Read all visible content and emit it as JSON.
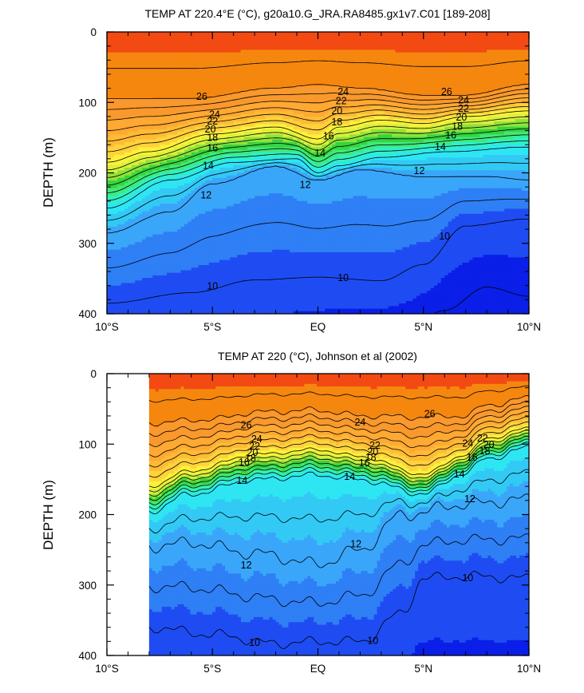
{
  "chart_data": [
    {
      "type": "contour",
      "title": "TEMP AT 220.4°E (°C), g20a10.G_JRA.RA8485.gx1v7.C01 [189-208]",
      "ylabel": "DEPTH (m)",
      "xlabel": "",
      "x_ticks": [
        "10°S",
        "5°S",
        "EQ",
        "5°N",
        "10°N"
      ],
      "y_ticks": [
        "0",
        "100",
        "200",
        "300",
        "400"
      ],
      "xlim": [
        -10,
        10
      ],
      "ylim": [
        400,
        0
      ],
      "data_x_range": [
        -10,
        10
      ],
      "contour_interval": 1,
      "contour_labels": [
        {
          "text": "26",
          "x": -5.5,
          "y": 92
        },
        {
          "text": "24",
          "x": -4.9,
          "y": 117
        },
        {
          "text": "22",
          "x": -5.0,
          "y": 127
        },
        {
          "text": "20",
          "x": -5.1,
          "y": 138
        },
        {
          "text": "18",
          "x": -5.0,
          "y": 150
        },
        {
          "text": "16",
          "x": -5.0,
          "y": 165
        },
        {
          "text": "14",
          "x": -5.2,
          "y": 190
        },
        {
          "text": "12",
          "x": -5.3,
          "y": 232
        },
        {
          "text": "24",
          "x": 1.2,
          "y": 85
        },
        {
          "text": "22",
          "x": 1.1,
          "y": 98
        },
        {
          "text": "20",
          "x": 0.9,
          "y": 112
        },
        {
          "text": "18",
          "x": 0.9,
          "y": 128
        },
        {
          "text": "16",
          "x": 0.5,
          "y": 148
        },
        {
          "text": "14",
          "x": 0.1,
          "y": 172
        },
        {
          "text": "12",
          "x": -0.6,
          "y": 217
        },
        {
          "text": "26",
          "x": 6.1,
          "y": 85
        },
        {
          "text": "24",
          "x": 6.9,
          "y": 97
        },
        {
          "text": "22",
          "x": 6.9,
          "y": 109
        },
        {
          "text": "20",
          "x": 6.8,
          "y": 121
        },
        {
          "text": "18",
          "x": 6.6,
          "y": 134
        },
        {
          "text": "16",
          "x": 6.3,
          "y": 147
        },
        {
          "text": "14",
          "x": 5.8,
          "y": 163
        },
        {
          "text": "12",
          "x": 4.8,
          "y": 197
        },
        {
          "text": "10",
          "x": 6.0,
          "y": 290
        },
        {
          "text": "10",
          "x": -5.0,
          "y": 361
        },
        {
          "text": "10",
          "x": 1.2,
          "y": 349
        }
      ]
    },
    {
      "type": "contour",
      "title": "TEMP AT 220 (°C), Johnson et al (2002)",
      "ylabel": "DEPTH (m)",
      "xlabel": "",
      "x_ticks": [
        "10°S",
        "5°S",
        "EQ",
        "5°N",
        "10°N"
      ],
      "y_ticks": [
        "0",
        "100",
        "200",
        "300",
        "400"
      ],
      "xlim": [
        -10,
        10
      ],
      "ylim": [
        400,
        0
      ],
      "data_x_range": [
        -8,
        10
      ],
      "contour_interval": 1,
      "contour_labels": [
        {
          "text": "26",
          "x": -3.4,
          "y": 73
        },
        {
          "text": "24",
          "x": -2.9,
          "y": 93
        },
        {
          "text": "22",
          "x": -3.0,
          "y": 103
        },
        {
          "text": "20",
          "x": -3.1,
          "y": 112
        },
        {
          "text": "18",
          "x": -3.2,
          "y": 120
        },
        {
          "text": "16",
          "x": -3.5,
          "y": 126
        },
        {
          "text": "14",
          "x": -3.6,
          "y": 152
        },
        {
          "text": "24",
          "x": 2.0,
          "y": 69
        },
        {
          "text": "26",
          "x": 5.3,
          "y": 57
        },
        {
          "text": "22",
          "x": 2.7,
          "y": 102
        },
        {
          "text": "20",
          "x": 2.6,
          "y": 111
        },
        {
          "text": "18",
          "x": 2.5,
          "y": 119
        },
        {
          "text": "16",
          "x": 2.2,
          "y": 127
        },
        {
          "text": "14",
          "x": 1.5,
          "y": 146
        },
        {
          "text": "12",
          "x": 7.2,
          "y": 178
        },
        {
          "text": "12",
          "x": 1.8,
          "y": 242
        },
        {
          "text": "12",
          "x": -3.4,
          "y": 272
        },
        {
          "text": "24",
          "x": 7.1,
          "y": 99
        },
        {
          "text": "22",
          "x": 7.8,
          "y": 92
        },
        {
          "text": "20",
          "x": 8.1,
          "y": 101
        },
        {
          "text": "18",
          "x": 7.9,
          "y": 110
        },
        {
          "text": "16",
          "x": 7.3,
          "y": 119
        },
        {
          "text": "14",
          "x": 6.7,
          "y": 143
        },
        {
          "text": "10",
          "x": 7.1,
          "y": 290
        },
        {
          "text": "10",
          "x": -3.0,
          "y": 382
        },
        {
          "text": "10",
          "x": 2.6,
          "y": 379
        }
      ]
    }
  ]
}
